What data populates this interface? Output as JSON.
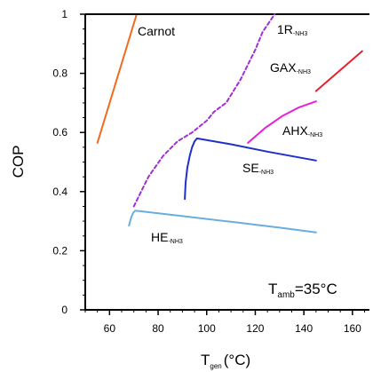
{
  "chart_data": {
    "type": "line",
    "title": "",
    "xlabel": "T",
    "xlabel_sub": "gen",
    "xlabel_unit": "(°C)",
    "ylabel": "COP",
    "xlim": [
      50,
      167
    ],
    "ylim": [
      0,
      1
    ],
    "x_ticks": [
      60,
      80,
      100,
      120,
      140,
      160
    ],
    "y_ticks": [
      0,
      0.2,
      0.4,
      0.6,
      0.8,
      1
    ],
    "y_tick_labels": [
      "0",
      "0.2",
      "0.4",
      "0.6",
      "0.8",
      "1"
    ],
    "grid": false,
    "legend": "none",
    "annotation": {
      "main": "T",
      "sub": "amb",
      "rest": "=35°C"
    },
    "series": [
      {
        "name": "Carnot",
        "label_main": "Carnot",
        "label_sub": "",
        "color": "#f26b1d",
        "dash": false,
        "x": [
          55,
          71
        ],
        "y": [
          0.565,
          0.995
        ]
      },
      {
        "name": "1R-NH3",
        "label_main": "1R",
        "label_sub": "-NH3",
        "color": "#a02fd6",
        "dash": true,
        "x": [
          70,
          76,
          82,
          88,
          94,
          100,
          103,
          108,
          114,
          120,
          123,
          128
        ],
        "y": [
          0.35,
          0.45,
          0.52,
          0.57,
          0.6,
          0.64,
          0.67,
          0.7,
          0.78,
          0.88,
          0.94,
          1.0
        ]
      },
      {
        "name": "GAX-NH3",
        "label_main": "GAX",
        "label_sub": "-NH3",
        "color": "#e8202c",
        "dash": false,
        "x": [
          145,
          164
        ],
        "y": [
          0.74,
          0.875
        ]
      },
      {
        "name": "AHX-NH3",
        "label_main": "AHX",
        "label_sub": "-NH3",
        "color": "#e81fd8",
        "dash": false,
        "x": [
          117,
          124,
          131,
          138,
          145
        ],
        "y": [
          0.565,
          0.615,
          0.655,
          0.685,
          0.705
        ]
      },
      {
        "name": "SE-NH3",
        "label_main": "SE",
        "label_sub": "-NH3",
        "color": "#1f30c8",
        "dash": false,
        "x": [
          91,
          91.3,
          92,
          93,
          94,
          95,
          96,
          110,
          125,
          145
        ],
        "y": [
          0.375,
          0.43,
          0.48,
          0.52,
          0.55,
          0.57,
          0.58,
          0.56,
          0.535,
          0.505
        ]
      },
      {
        "name": "HE-NH3",
        "label_main": "HE",
        "label_sub": "-NH3",
        "color": "#6aaee0",
        "dash": false,
        "x": [
          68,
          68.5,
          69,
          69.7,
          70.5,
          71,
          90,
          110,
          130,
          145
        ],
        "y": [
          0.285,
          0.3,
          0.315,
          0.328,
          0.335,
          0.335,
          0.317,
          0.298,
          0.278,
          0.262
        ]
      }
    ]
  }
}
